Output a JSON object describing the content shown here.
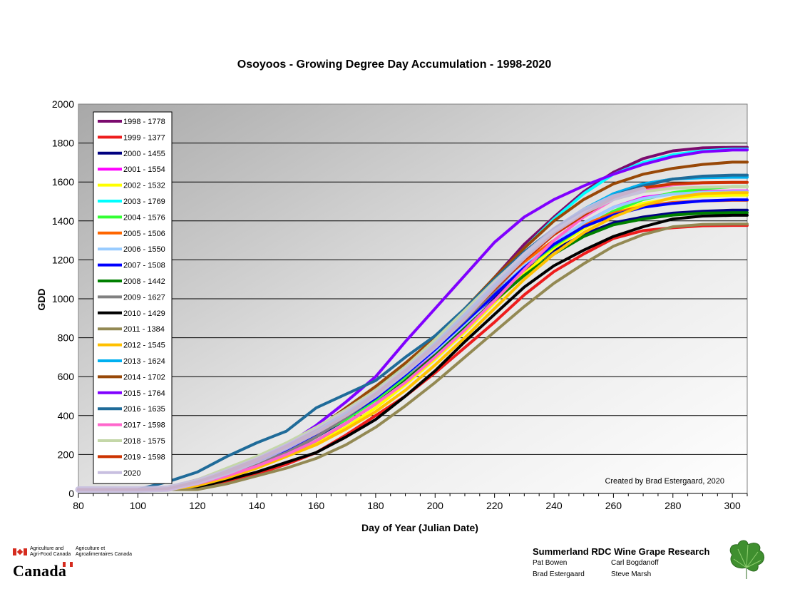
{
  "chart_data": {
    "type": "line",
    "title": "Osoyoos - Growing Degree Day Accumulation - 1998-2020",
    "xlabel": "Day of Year (Julian Date)",
    "ylabel": "GDD",
    "xlim": [
      80,
      305
    ],
    "ylim": [
      0,
      2000
    ],
    "x_ticks": [
      80,
      100,
      120,
      140,
      160,
      180,
      200,
      220,
      240,
      260,
      280,
      300
    ],
    "y_ticks": [
      0,
      200,
      400,
      600,
      800,
      1000,
      1200,
      1400,
      1600,
      1800,
      2000
    ],
    "grid": "horizontal",
    "legend_position": "top-left inside plot",
    "annotation": "Created by Brad Estergaard, 2020",
    "x": [
      80,
      100,
      110,
      120,
      130,
      140,
      150,
      160,
      170,
      180,
      190,
      200,
      210,
      220,
      230,
      240,
      250,
      260,
      270,
      280,
      290,
      300,
      305
    ],
    "series": [
      {
        "name": "1998 - 1778",
        "color": "#7b0a6e",
        "values": [
          20,
          20,
          25,
          60,
          120,
          170,
          230,
          310,
          410,
          520,
          650,
          790,
          940,
          1110,
          1280,
          1420,
          1550,
          1650,
          1720,
          1760,
          1775,
          1778,
          1778
        ]
      },
      {
        "name": "1999 - 1377",
        "color": "#ee1c1c",
        "values": [
          20,
          20,
          20,
          30,
          60,
          100,
          150,
          210,
          300,
          400,
          500,
          620,
          750,
          880,
          1020,
          1140,
          1230,
          1310,
          1350,
          1365,
          1375,
          1377,
          1377
        ]
      },
      {
        "name": "2000 - 1455",
        "color": "#000080",
        "values": [
          20,
          20,
          25,
          55,
          100,
          150,
          210,
          290,
          380,
          490,
          610,
          740,
          880,
          1010,
          1140,
          1250,
          1330,
          1390,
          1420,
          1440,
          1450,
          1455,
          1455
        ]
      },
      {
        "name": "2001 - 1554",
        "color": "#ff00ff",
        "values": [
          20,
          20,
          25,
          50,
          90,
          140,
          200,
          270,
          360,
          460,
          580,
          720,
          870,
          1020,
          1160,
          1290,
          1390,
          1470,
          1520,
          1540,
          1550,
          1554,
          1554
        ]
      },
      {
        "name": "2002 - 1532",
        "color": "#ffff00",
        "values": [
          20,
          20,
          20,
          40,
          80,
          130,
          190,
          260,
          340,
          440,
          560,
          690,
          830,
          980,
          1130,
          1260,
          1360,
          1440,
          1490,
          1515,
          1528,
          1532,
          1532
        ]
      },
      {
        "name": "2003 - 1769",
        "color": "#00ffff",
        "values": [
          20,
          20,
          25,
          60,
          110,
          170,
          240,
          320,
          420,
          530,
          660,
          790,
          940,
          1100,
          1260,
          1410,
          1540,
          1640,
          1700,
          1740,
          1760,
          1769,
          1769
        ]
      },
      {
        "name": "2004 - 1576",
        "color": "#33ff33",
        "values": [
          20,
          20,
          30,
          70,
          120,
          170,
          230,
          300,
          380,
          480,
          600,
          740,
          880,
          1020,
          1160,
          1270,
          1370,
          1450,
          1510,
          1545,
          1565,
          1576,
          1576
        ]
      },
      {
        "name": "2005 - 1506",
        "color": "#ff6600",
        "values": [
          20,
          20,
          30,
          70,
          120,
          180,
          250,
          330,
          420,
          530,
          650,
          780,
          920,
          1060,
          1190,
          1300,
          1380,
          1440,
          1475,
          1495,
          1503,
          1506,
          1506
        ]
      },
      {
        "name": "2006 - 1550",
        "color": "#99ccff",
        "values": [
          20,
          20,
          25,
          55,
          100,
          160,
          230,
          310,
          400,
          500,
          610,
          730,
          870,
          1020,
          1170,
          1290,
          1390,
          1470,
          1515,
          1538,
          1547,
          1550,
          1550
        ]
      },
      {
        "name": "2007 - 1508",
        "color": "#0000ff",
        "values": [
          20,
          20,
          30,
          60,
          110,
          160,
          220,
          300,
          390,
          490,
          610,
          740,
          880,
          1020,
          1160,
          1280,
          1370,
          1430,
          1470,
          1490,
          1503,
          1508,
          1508
        ]
      },
      {
        "name": "2008 - 1442",
        "color": "#008000",
        "values": [
          20,
          20,
          20,
          45,
          90,
          140,
          200,
          270,
          360,
          460,
          580,
          710,
          850,
          990,
          1120,
          1230,
          1320,
          1380,
          1410,
          1430,
          1440,
          1442,
          1442
        ]
      },
      {
        "name": "2009 - 1627",
        "color": "#808080",
        "values": [
          20,
          20,
          25,
          55,
          100,
          150,
          210,
          290,
          390,
          500,
          620,
          750,
          890,
          1040,
          1200,
          1340,
          1450,
          1540,
          1590,
          1615,
          1625,
          1627,
          1627
        ]
      },
      {
        "name": "2010 - 1429",
        "color": "#000000",
        "values": [
          20,
          20,
          20,
          30,
          70,
          110,
          160,
          210,
          290,
          380,
          500,
          630,
          780,
          920,
          1060,
          1170,
          1250,
          1320,
          1370,
          1410,
          1425,
          1429,
          1429
        ]
      },
      {
        "name": "2011 - 1384",
        "color": "#938953",
        "values": [
          20,
          20,
          20,
          20,
          50,
          90,
          130,
          180,
          250,
          340,
          450,
          570,
          700,
          830,
          960,
          1080,
          1180,
          1270,
          1330,
          1370,
          1382,
          1384,
          1384
        ]
      },
      {
        "name": "2012 - 1545",
        "color": "#ffc000",
        "values": [
          20,
          20,
          20,
          40,
          80,
          130,
          190,
          250,
          330,
          420,
          530,
          660,
          800,
          950,
          1100,
          1230,
          1340,
          1420,
          1480,
          1520,
          1540,
          1545,
          1545
        ]
      },
      {
        "name": "2013 - 1624",
        "color": "#00b0f0",
        "values": [
          20,
          20,
          30,
          60,
          110,
          170,
          240,
          320,
          410,
          510,
          630,
          770,
          920,
          1070,
          1220,
          1360,
          1460,
          1540,
          1590,
          1615,
          1622,
          1624,
          1624
        ]
      },
      {
        "name": "2014 - 1702",
        "color": "#984807",
        "values": [
          20,
          20,
          30,
          70,
          120,
          180,
          250,
          330,
          440,
          550,
          670,
          800,
          950,
          1110,
          1260,
          1400,
          1510,
          1590,
          1640,
          1670,
          1690,
          1702,
          1702
        ]
      },
      {
        "name": "2015 - 1764",
        "color": "#8000ff",
        "values": [
          20,
          20,
          30,
          60,
          110,
          170,
          250,
          350,
          470,
          600,
          780,
          950,
          1120,
          1290,
          1420,
          1510,
          1580,
          1640,
          1690,
          1730,
          1755,
          1764,
          1764
        ]
      },
      {
        "name": "2016 - 1635",
        "color": "#1f6b99",
        "values": [
          20,
          20,
          60,
          110,
          190,
          260,
          320,
          440,
          510,
          580,
          700,
          810,
          950,
          1100,
          1240,
          1360,
          1450,
          1530,
          1580,
          1615,
          1630,
          1635,
          1635
        ]
      },
      {
        "name": "2017 - 1598",
        "color": "#ff66cc",
        "values": [
          20,
          20,
          20,
          50,
          90,
          140,
          200,
          270,
          360,
          460,
          570,
          700,
          840,
          990,
          1150,
          1300,
          1420,
          1510,
          1560,
          1585,
          1595,
          1598,
          1598
        ]
      },
      {
        "name": "2018 - 1575",
        "color": "#c4d7a8",
        "values": [
          20,
          20,
          30,
          70,
          130,
          190,
          260,
          340,
          430,
          530,
          650,
          790,
          940,
          1090,
          1230,
          1350,
          1440,
          1510,
          1550,
          1568,
          1573,
          1575,
          1575
        ]
      },
      {
        "name": "2019 - 1598",
        "color": "#cc3300",
        "values": [
          20,
          20,
          25,
          60,
          110,
          170,
          240,
          310,
          400,
          510,
          630,
          760,
          900,
          1050,
          1200,
          1330,
          1430,
          1520,
          1570,
          1590,
          1596,
          1598,
          1598
        ]
      },
      {
        "name": "2020",
        "color": "#c8bfe0",
        "values": [
          20,
          20,
          25,
          60,
          110,
          170,
          240,
          320,
          410,
          510,
          630,
          760,
          910,
          1070,
          1220,
          1350,
          1450,
          1520,
          1560,
          null,
          null,
          null,
          null
        ]
      }
    ]
  },
  "footer": {
    "agency_en": "Agriculture and\nAgri-Food Canada",
    "agency_fr": "Agriculture et\nAgroalimentaires Canada",
    "wordmark": "Canada",
    "research_title": "Summerland RDC Wine Grape Research",
    "credits": [
      "Pat Bowen",
      "Carl Bogdanoff",
      "Brad Estergaard",
      "Steve Marsh"
    ]
  }
}
